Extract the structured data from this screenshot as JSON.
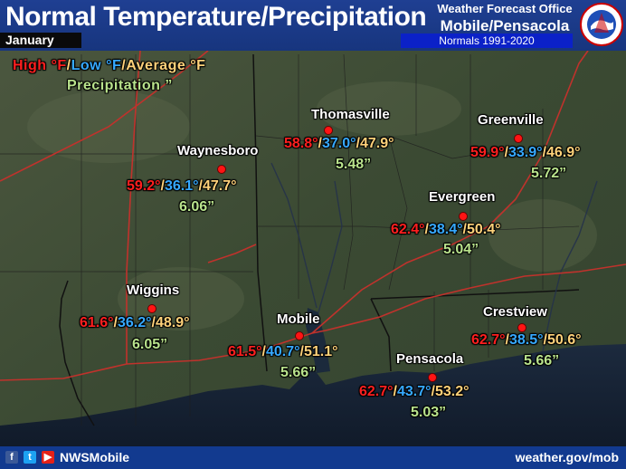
{
  "header": {
    "title": "Normal Temperature/Precipitation",
    "month": "January",
    "office_line1": "Weather Forecast Office",
    "office_line2": "Mobile/Pensacola",
    "normals": "Normals 1991-2020",
    "logo_icon": "nws-logo-icon"
  },
  "legend": {
    "high": "High °F",
    "sep1": "/",
    "low": "Low °F",
    "sep2": "/",
    "avg": "Average °F",
    "precip": "Precipitation ”"
  },
  "colors": {
    "high": "#ff1f1f",
    "low": "#36a9ff",
    "avg": "#ffd27a",
    "precip": "#b9e38c",
    "header": "#1f3f92",
    "footer": "#123a8f"
  },
  "stations": [
    {
      "name": "Thomasville",
      "high": "58.8°",
      "low": "37.0°",
      "avg": "47.9°",
      "precip": "5.48”"
    },
    {
      "name": "Greenville",
      "high": "59.9°",
      "low": "33.9°",
      "avg": "46.9°",
      "precip": "5.72”"
    },
    {
      "name": "Waynesboro",
      "high": "59.2°",
      "low": "36.1°",
      "avg": "47.7°",
      "precip": "6.06”"
    },
    {
      "name": "Evergreen",
      "high": "62.4°",
      "low": "38.4°",
      "avg": "50.4°",
      "precip": "5.04”"
    },
    {
      "name": "Wiggins",
      "high": "61.6°",
      "low": "36.2°",
      "avg": "48.9°",
      "precip": "6.05”"
    },
    {
      "name": "Mobile",
      "high": "61.5°",
      "low": "40.7°",
      "avg": "51.1°",
      "precip": "5.66”"
    },
    {
      "name": "Crestview",
      "high": "62.7°",
      "low": "38.5°",
      "avg": "50.6°",
      "precip": "5.66”"
    },
    {
      "name": "Pensacola",
      "high": "62.7°",
      "low": "43.7°",
      "avg": "53.2°",
      "precip": "5.03”"
    }
  ],
  "footer": {
    "facebook_icon": "facebook-icon",
    "twitter_icon": "twitter-icon",
    "youtube_icon": "youtube-icon",
    "handle": "NWSMobile",
    "url": "weather.gov/mob"
  }
}
